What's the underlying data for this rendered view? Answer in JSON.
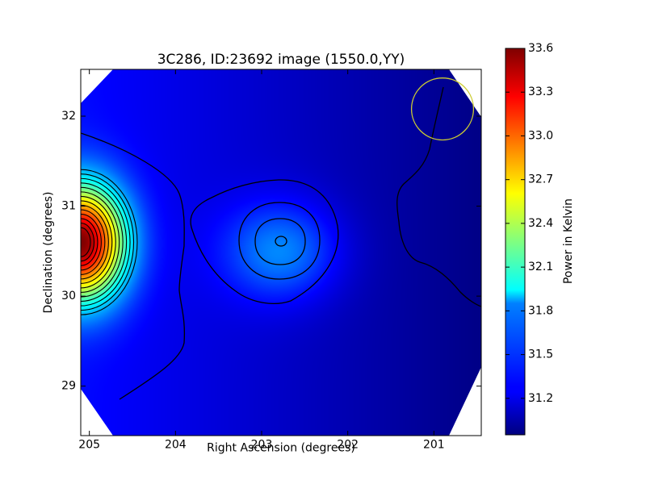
{
  "chart_data": {
    "type": "heatmap",
    "title": "3C286, ID:23692 image (1550.0,YY)",
    "xlabel": "Right Ascension (degrees)",
    "ylabel": "Declination (degrees)",
    "xlim": [
      205.1,
      200.45
    ],
    "ylim": [
      28.45,
      32.52
    ],
    "x_ticks": [
      205,
      204,
      203,
      202,
      201
    ],
    "y_ticks": [
      29,
      30,
      31,
      32
    ],
    "colorbar": {
      "label": "Power in Kelvin",
      "colormap": "jet",
      "range": [
        30.95,
        33.6
      ],
      "ticks": [
        "31.2",
        "31.5",
        "31.8",
        "32.1",
        "32.4",
        "32.7",
        "33.0",
        "33.3",
        "33.6"
      ]
    },
    "sources": [
      {
        "ra": 205.1,
        "dec": 30.6,
        "peak_kelvin": 33.6
      },
      {
        "ra": 202.78,
        "dec": 30.5,
        "peak_kelvin": 31.7
      }
    ],
    "background_kelvin_range": [
      30.95,
      31.3
    ],
    "marker_circle": {
      "ra": 200.9,
      "dec": 32.08,
      "radius_deg": 0.36,
      "color": "#cccc33"
    },
    "mask_shape": "octagon",
    "grid": false,
    "legend": "none"
  }
}
